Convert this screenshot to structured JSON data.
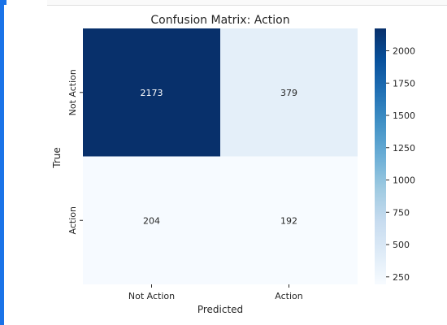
{
  "colors": {
    "accent": "#1a73e8"
  },
  "chart_data": {
    "type": "heatmap",
    "title": "Confusion Matrix: Action",
    "xlabel": "Predicted",
    "ylabel": "True",
    "x_categories": [
      "Not Action",
      "Action"
    ],
    "y_categories": [
      "Not Action",
      "Action"
    ],
    "values": [
      [
        2173,
        379
      ],
      [
        204,
        192
      ]
    ],
    "colormap": "Blues",
    "vmin": 192,
    "vmax": 2173,
    "colorbar_ticks": [
      250,
      500,
      750,
      1000,
      1250,
      1500,
      1750,
      2000
    ],
    "grid": false
  }
}
